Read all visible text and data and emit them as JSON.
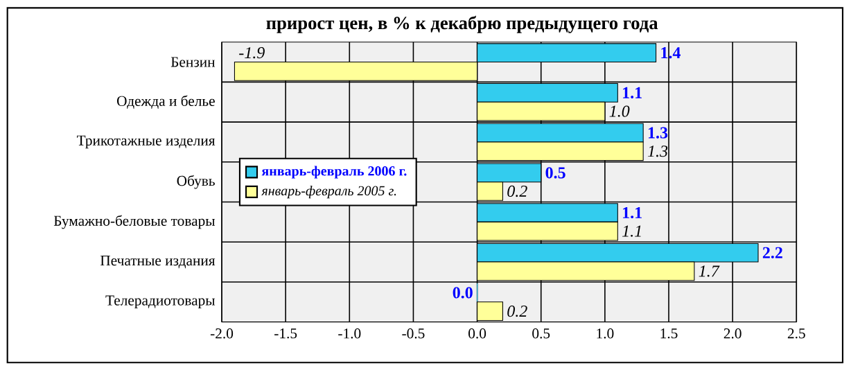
{
  "chart_data": {
    "type": "bar",
    "orientation": "horizontal",
    "title": "прирост цен, в % к декабрю предыдущего года",
    "categories": [
      "Бензин",
      "Одежда и белье",
      "Трикотажные изделия",
      "Обувь",
      "Бумажно-беловые товары",
      "Печатные издания",
      "Телерадиотовары"
    ],
    "series": [
      {
        "name": "январь-февраль 2006 г.",
        "color": "#33ccee",
        "values": [
          1.4,
          1.1,
          1.3,
          0.5,
          1.1,
          2.2,
          0.0
        ],
        "value_labels": [
          "1.4",
          "1.1",
          "1.3",
          "0.5",
          "1.1",
          "2.2",
          "0.0"
        ]
      },
      {
        "name": "январь-февраль 2005 г.",
        "color": "#ffff99",
        "values": [
          -1.9,
          1.0,
          1.3,
          0.2,
          1.1,
          1.7,
          0.2
        ],
        "value_labels": [
          "-1.9",
          "1.0",
          "1.3",
          "0.2",
          "1.1",
          "1.7",
          "0.2"
        ]
      }
    ],
    "xlim": [
      -2,
      2.5
    ],
    "xticks": [
      {
        "value": -2,
        "label": "-2.0"
      },
      {
        "value": -1.5,
        "label": "-1.5"
      },
      {
        "value": -1,
        "label": "-1.0"
      },
      {
        "value": -0.5,
        "label": "-0.5"
      },
      {
        "value": 0,
        "label": "0.0"
      },
      {
        "value": 0.5,
        "label": "0.5"
      },
      {
        "value": 1,
        "label": "1.0"
      },
      {
        "value": 1.5,
        "label": "1.5"
      },
      {
        "value": 2,
        "label": "2.0"
      },
      {
        "value": 2.5,
        "label": "2.5"
      }
    ],
    "grid": true,
    "legend": "left"
  }
}
